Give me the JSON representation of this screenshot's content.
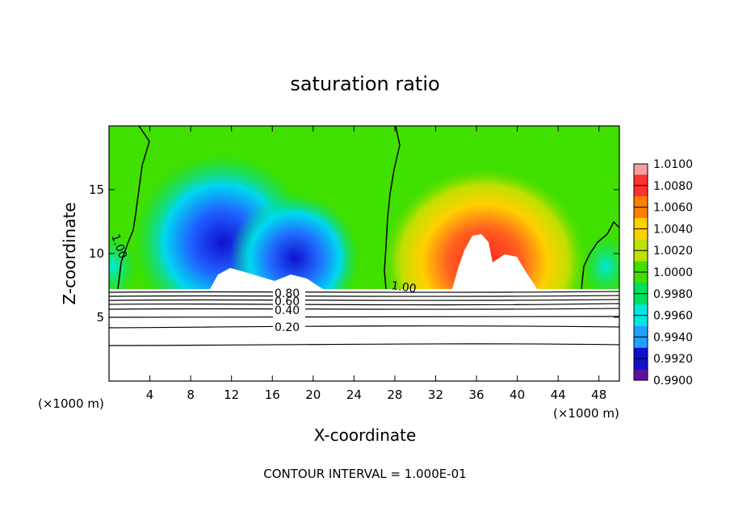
{
  "chart_data": {
    "type": "heatmap",
    "title": "saturation ratio",
    "xlabel": "X-coordinate",
    "ylabel": "Z-coordinate",
    "x_unit_label": "(×1000 m)",
    "y_unit_label": "(×1000 m)",
    "xlim": [
      0,
      50
    ],
    "ylim": [
      0,
      20
    ],
    "x_ticks": [
      4,
      8,
      12,
      16,
      20,
      24,
      28,
      32,
      36,
      40,
      44,
      48
    ],
    "y_ticks": [
      5,
      10,
      15
    ],
    "colorbar": {
      "levels": [
        "1.0100",
        "1.0080",
        "1.0060",
        "1.0040",
        "1.0020",
        "1.0000",
        "0.9980",
        "0.9960",
        "0.9940",
        "0.9920",
        "0.9900"
      ],
      "colors": [
        "#f2a0a0",
        "#ff3030",
        "#ff8000",
        "#ffd000",
        "#c0e000",
        "#40e000",
        "#00e060",
        "#00e8e0",
        "#20a0ff",
        "#1010d0",
        "#6010a0"
      ]
    },
    "contour_labels": [
      "0.80",
      "0.60",
      "0.40",
      "0.20"
    ],
    "inline_labels": [
      "1.00",
      "1.00"
    ],
    "contour_interval_text": "CONTOUR INTERVAL = 1.000E-01"
  }
}
